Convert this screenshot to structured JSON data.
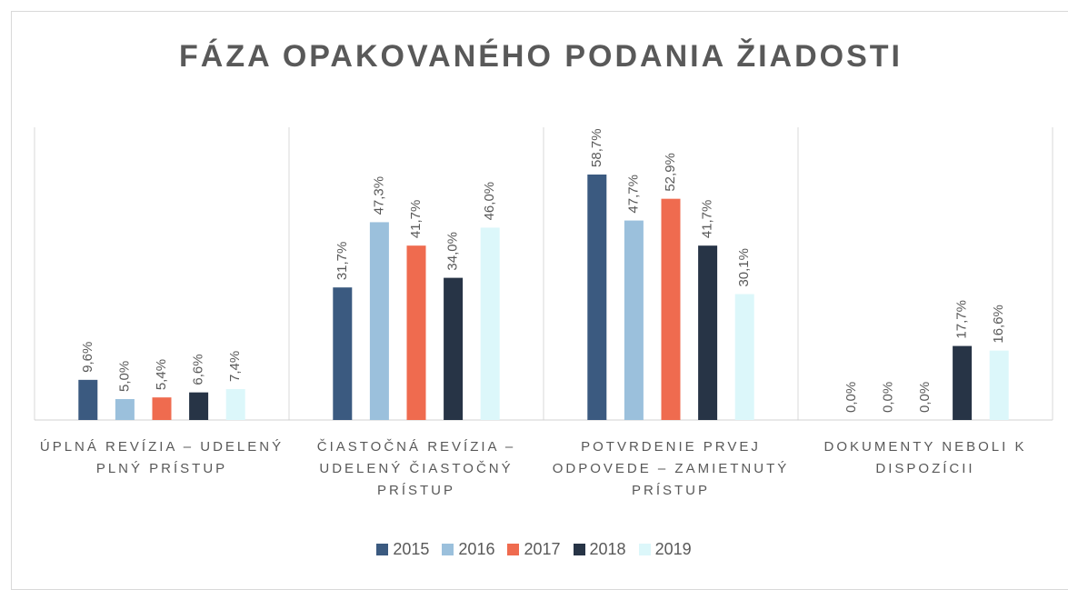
{
  "chart_data": {
    "type": "bar",
    "title": "FÁZA OPAKOVANÉHO PODANIA ŽIADOSTI",
    "categories": [
      "ÚPLNÁ REVÍZIA – UDELENÝ PLNÝ PRÍSTUP",
      "ČIASTOČNÁ REVÍZIA – UDELENÝ ČIASTOČNÝ PRÍSTUP",
      "POTVRDENIE PRVEJ ODPOVEDE – ZAMIETNUTÝ PRÍSTUP",
      "DOKUMENTY NEBOLI K DISPOZÍCII"
    ],
    "series": [
      {
        "name": "2015",
        "color": "#3b5a80",
        "values": [
          9.6,
          31.7,
          58.7,
          0.0
        ],
        "value_labels": [
          "9,6%",
          "31,7%",
          "58,7%",
          "0,0%"
        ]
      },
      {
        "name": "2016",
        "color": "#9bc0dc",
        "values": [
          5.0,
          47.3,
          47.7,
          0.0
        ],
        "value_labels": [
          "5,0%",
          "47,3%",
          "47,7%",
          "0,0%"
        ]
      },
      {
        "name": "2017",
        "color": "#ef6b4f",
        "values": [
          5.4,
          41.7,
          52.9,
          0.0
        ],
        "value_labels": [
          "5,4%",
          "41,7%",
          "52,9%",
          "0,0%"
        ]
      },
      {
        "name": "2018",
        "color": "#273446",
        "values": [
          6.6,
          34.0,
          41.7,
          17.7
        ],
        "value_labels": [
          "6,6%",
          "34,0%",
          "41,7%",
          "17,7%"
        ]
      },
      {
        "name": "2019",
        "color": "#dcf7fa",
        "values": [
          7.4,
          46.0,
          30.1,
          16.6
        ],
        "value_labels": [
          "7,4%",
          "46,0%",
          "30,1%",
          "16,6%"
        ]
      }
    ],
    "legend": "bottom"
  }
}
